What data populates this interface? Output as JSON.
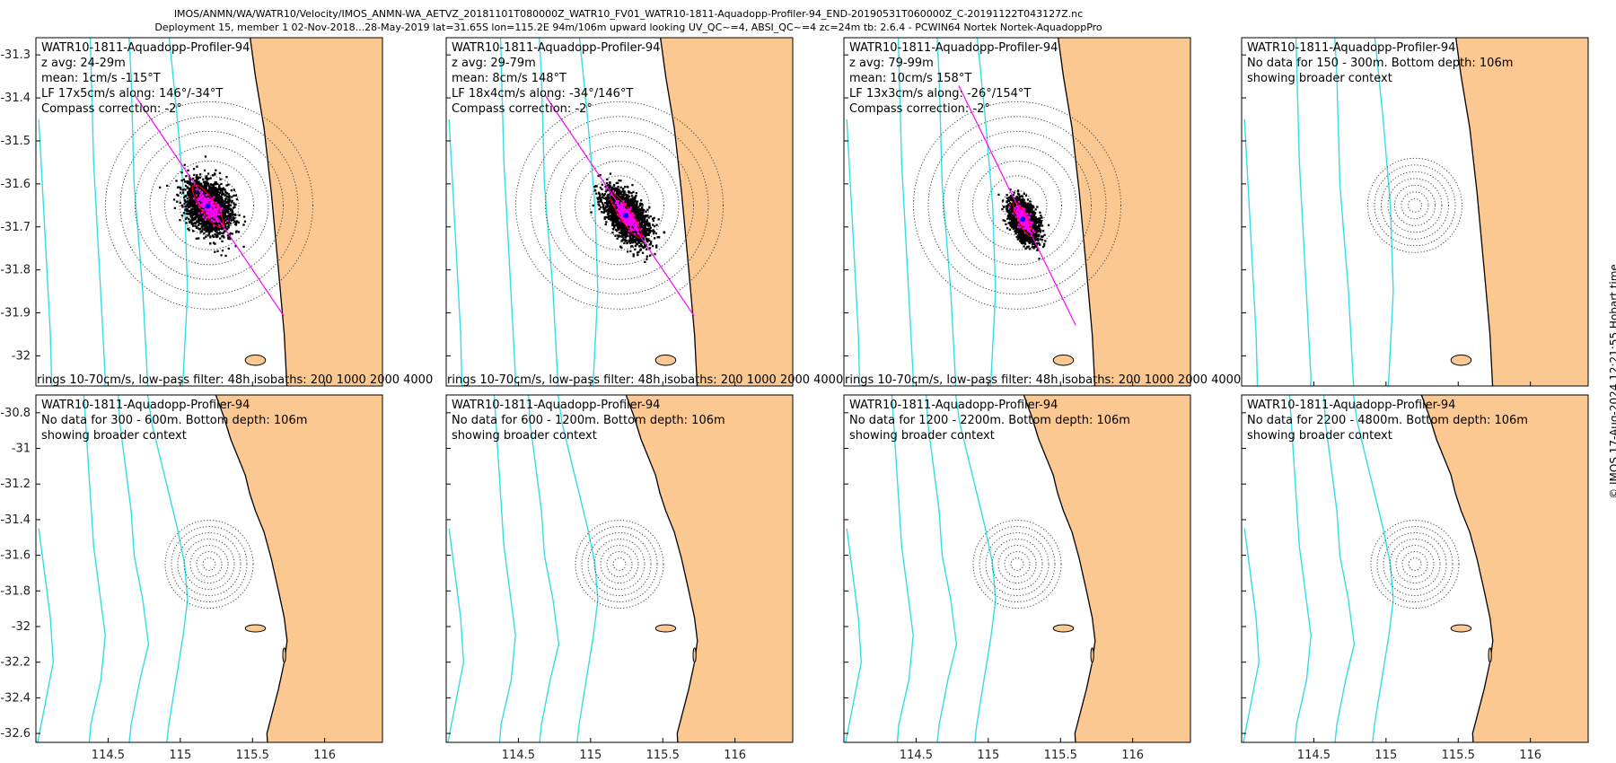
{
  "title_line1": "IMOS/ANMN/WA/WATR10/Velocity/IMOS_ANMN-WA_AETVZ_20181101T080000Z_WATR10_FV01_WATR10-1811-Aquadopp-Profiler-94_END-20190531T060000Z_C-20191122T043127Z.nc",
  "title_line2": "Deployment 15, member 1 02-Nov-2018...28-May-2019 lat=31.65S lon=115.2E 94m/106m upward looking UV_QC~=4, ABSI_QC~=4 zc=24m tb: 2.6.4 - PCWIN64 Nortek Nortek-AquadoppPro",
  "timestamp": "© IMOS 17-Aug-2024 12:21:55 Hobart time",
  "footer_note": "rings 10-70cm/s, low-pass filter: 48h isobaths: 200 1000 2000 4000",
  "colors": {
    "land": "#fbc891",
    "isobath": "#33dde6",
    "scatter": "#000000",
    "lowpass": "#ff00ff",
    "mean": "#0000ff",
    "coast": "#000000"
  },
  "chart_data": {
    "type": "scatter",
    "x_ticks": [
      114.5,
      115,
      115.5,
      116
    ],
    "x_range": [
      114,
      116.4
    ],
    "rows": [
      {
        "y_range": [
          -32.07,
          -31.26
        ],
        "y_ticks": [
          -31.3,
          -31.4,
          -31.5,
          -31.6,
          -31.7,
          -31.8,
          -31.9,
          -32
        ]
      },
      {
        "y_range": [
          -32.65,
          -30.7
        ],
        "y_ticks": [
          -30.8,
          -31,
          -31.2,
          -31.4,
          -31.6,
          -31.8,
          -32,
          -32.2,
          -32.4,
          -32.6
        ]
      }
    ],
    "ring_center": {
      "lon": 115.2,
      "lat": -31.65
    },
    "panels": [
      {
        "id": "p1",
        "row": 0,
        "col": 0,
        "has_data": true,
        "text": [
          "WATR10-1811-Aquadopp-Profiler-94",
          "z avg: 24-29m",
          "mean: 1cm/s -115°T",
          "LF 17x5cm/s along: 146°/-34°T",
          "Compass correction: -2°"
        ],
        "ellipse_major_cm_s": 17,
        "ellipse_minor_cm_s": 5,
        "along_axis_deg_true": 146,
        "mean_speed_cm_s": 1,
        "mean_dir_deg_true": -115
      },
      {
        "id": "p2",
        "row": 0,
        "col": 1,
        "has_data": true,
        "text": [
          "WATR10-1811-Aquadopp-Profiler-94",
          "z avg: 29-79m",
          "mean: 8cm/s 148°T",
          "LF 18x4cm/s along: -34°/146°T",
          "Compass correction: -2°"
        ],
        "ellipse_major_cm_s": 18,
        "ellipse_minor_cm_s": 4,
        "along_axis_deg_true": 146,
        "mean_speed_cm_s": 8,
        "mean_dir_deg_true": 148
      },
      {
        "id": "p3",
        "row": 0,
        "col": 2,
        "has_data": true,
        "text": [
          "WATR10-1811-Aquadopp-Profiler-94",
          "z avg: 79-99m",
          "mean: 10cm/s 158°T",
          "LF 13x3cm/s along: -26°/154°T",
          "Compass correction: -2°"
        ],
        "ellipse_major_cm_s": 13,
        "ellipse_minor_cm_s": 3,
        "along_axis_deg_true": 154,
        "mean_speed_cm_s": 10,
        "mean_dir_deg_true": 158
      },
      {
        "id": "p4",
        "row": 0,
        "col": 3,
        "has_data": false,
        "text": [
          "WATR10-1811-Aquadopp-Profiler-94",
          "No data for 150 - 300m. Bottom depth: 106m",
          "showing broader context"
        ]
      },
      {
        "id": "p5",
        "row": 1,
        "col": 0,
        "has_data": false,
        "text": [
          "WATR10-1811-Aquadopp-Profiler-94",
          "No data for 300 - 600m. Bottom depth: 106m",
          "showing broader context"
        ]
      },
      {
        "id": "p6",
        "row": 1,
        "col": 1,
        "has_data": false,
        "text": [
          "WATR10-1811-Aquadopp-Profiler-94",
          "No data for 600 - 1200m. Bottom depth: 106m",
          "showing broader context"
        ]
      },
      {
        "id": "p7",
        "row": 1,
        "col": 2,
        "has_data": false,
        "text": [
          "WATR10-1811-Aquadopp-Profiler-94",
          "No data for 1200 - 2200m. Bottom depth: 106m",
          "showing broader context"
        ]
      },
      {
        "id": "p8",
        "row": 1,
        "col": 3,
        "has_data": false,
        "text": [
          "WATR10-1811-Aquadopp-Profiler-94",
          "No data for 2200 - 4800m. Bottom depth: 106m",
          "showing broader context"
        ]
      }
    ]
  }
}
